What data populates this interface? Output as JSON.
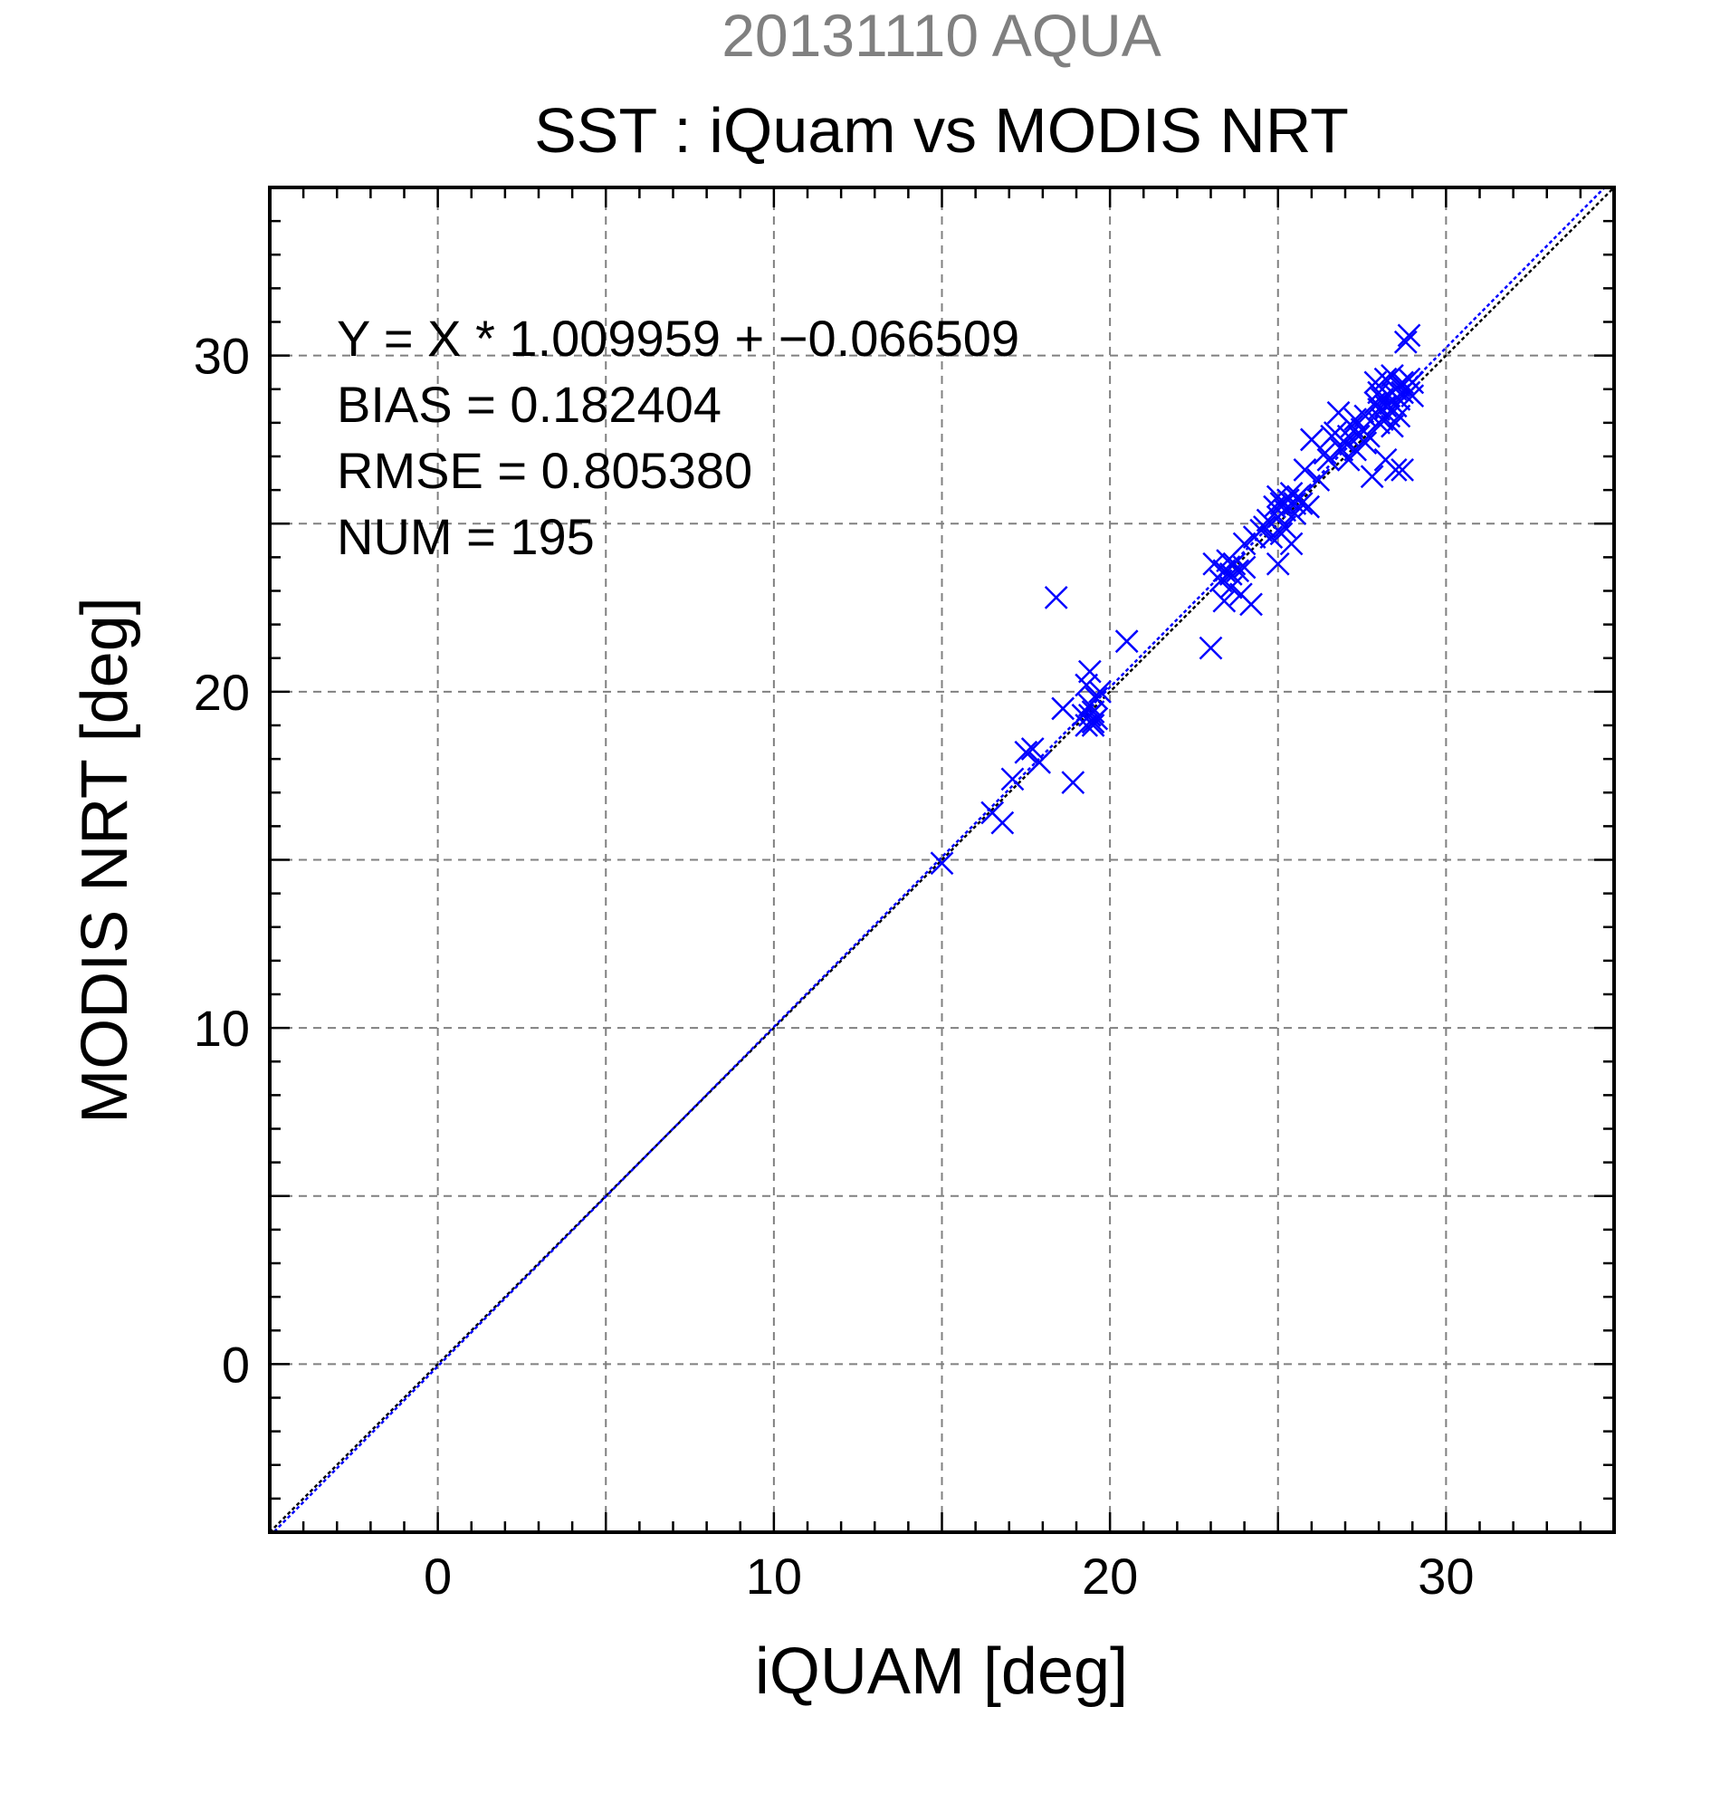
{
  "colors": {
    "marker": "#0000ff",
    "fit_line": "#0000ff",
    "identity_line": "#000000",
    "grid": "#808080",
    "subtitle": "#808080"
  },
  "chart_data": {
    "type": "scatter",
    "supertitle": "20131110 AQUA",
    "title": "SST : iQuam vs MODIS NRT",
    "xlabel": "iQUAM [deg]",
    "ylabel": "MODIS NRT [deg]",
    "xlim": [
      -5,
      35
    ],
    "ylim": [
      -5,
      35
    ],
    "xticks": [
      0,
      10,
      20,
      30
    ],
    "yticks": [
      0,
      10,
      20,
      30
    ],
    "grid": true,
    "marker": "x",
    "stats": {
      "equation": "Y = X * 1.009959 + −0.066509",
      "bias": "BIAS = 0.182404",
      "rmse": "RMSE = 0.805380",
      "num": "NUM = 195"
    },
    "fit": {
      "slope": 1.009959,
      "intercept": -0.066509
    },
    "identity": {
      "slope": 1,
      "intercept": 0
    },
    "points": [
      [
        15.0,
        14.9
      ],
      [
        16.5,
        16.4
      ],
      [
        16.8,
        16.1
      ],
      [
        17.1,
        17.4
      ],
      [
        17.5,
        18.2
      ],
      [
        17.7,
        18.3
      ],
      [
        17.9,
        17.9
      ],
      [
        18.4,
        22.8
      ],
      [
        18.6,
        19.5
      ],
      [
        18.9,
        17.3
      ],
      [
        19.2,
        19.3
      ],
      [
        19.3,
        20.2
      ],
      [
        19.3,
        19.0
      ],
      [
        19.4,
        20.6
      ],
      [
        19.4,
        19.6
      ],
      [
        19.5,
        19.1
      ],
      [
        19.5,
        19.4
      ],
      [
        19.6,
        19.2
      ],
      [
        19.6,
        19.8
      ],
      [
        19.7,
        20.0
      ],
      [
        19.5,
        19.0
      ],
      [
        19.4,
        19.3
      ],
      [
        20.5,
        21.5
      ],
      [
        23.0,
        21.3
      ],
      [
        23.1,
        23.8
      ],
      [
        23.3,
        23.3
      ],
      [
        23.4,
        22.7
      ],
      [
        23.4,
        23.6
      ],
      [
        23.5,
        23.9
      ],
      [
        23.6,
        23.5
      ],
      [
        23.6,
        23.1
      ],
      [
        23.7,
        23.8
      ],
      [
        23.8,
        23.6
      ],
      [
        23.9,
        22.9
      ],
      [
        24.0,
        23.7
      ],
      [
        24.0,
        24.4
      ],
      [
        24.2,
        22.6
      ],
      [
        24.3,
        24.6
      ],
      [
        24.5,
        24.8
      ],
      [
        24.6,
        24.9
      ],
      [
        24.7,
        25.1
      ],
      [
        24.8,
        24.6
      ],
      [
        24.9,
        25.5
      ],
      [
        25.0,
        23.8
      ],
      [
        25.0,
        25.2
      ],
      [
        25.0,
        25.8
      ],
      [
        25.1,
        24.7
      ],
      [
        25.1,
        25.6
      ],
      [
        25.2,
        25.4
      ],
      [
        25.2,
        24.9
      ],
      [
        25.3,
        25.7
      ],
      [
        25.4,
        25.9
      ],
      [
        25.4,
        24.4
      ],
      [
        25.5,
        25.3
      ],
      [
        25.5,
        25.6
      ],
      [
        25.6,
        25.8
      ],
      [
        25.7,
        25.6
      ],
      [
        25.8,
        26.6
      ],
      [
        25.9,
        25.5
      ],
      [
        26.0,
        27.5
      ],
      [
        26.2,
        26.3
      ],
      [
        26.4,
        27.1
      ],
      [
        26.5,
        26.9
      ],
      [
        26.6,
        27.6
      ],
      [
        26.7,
        27.7
      ],
      [
        26.8,
        28.3
      ],
      [
        26.9,
        27.2
      ],
      [
        27.0,
        27.4
      ],
      [
        27.1,
        26.9
      ],
      [
        27.1,
        27.6
      ],
      [
        27.2,
        27.9
      ],
      [
        27.3,
        28.1
      ],
      [
        27.3,
        27.2
      ],
      [
        27.4,
        27.6
      ],
      [
        27.5,
        27.8
      ],
      [
        27.6,
        27.4
      ],
      [
        27.6,
        28.2
      ],
      [
        27.7,
        27.6
      ],
      [
        27.8,
        26.4
      ],
      [
        27.9,
        28.6
      ],
      [
        27.9,
        29.2
      ],
      [
        28.0,
        28.4
      ],
      [
        28.0,
        28.9
      ],
      [
        28.1,
        28.1
      ],
      [
        28.1,
        28.7
      ],
      [
        28.2,
        26.9
      ],
      [
        28.2,
        28.5
      ],
      [
        28.2,
        29.3
      ],
      [
        28.3,
        28.8
      ],
      [
        28.3,
        28.2
      ],
      [
        28.4,
        28.9
      ],
      [
        28.4,
        27.9
      ],
      [
        28.5,
        29.0
      ],
      [
        28.5,
        28.5
      ],
      [
        28.5,
        26.6
      ],
      [
        28.6,
        29.1
      ],
      [
        28.6,
        28.7
      ],
      [
        28.6,
        28.2
      ],
      [
        28.7,
        29.2
      ],
      [
        28.7,
        28.9
      ],
      [
        28.7,
        26.6
      ],
      [
        28.8,
        30.4
      ],
      [
        28.8,
        29.0
      ],
      [
        28.9,
        29.3
      ],
      [
        28.9,
        30.6
      ],
      [
        28.9,
        28.9
      ],
      [
        29.0,
        29.2
      ],
      [
        29.0,
        28.8
      ],
      [
        28.4,
        29.4
      ],
      [
        28.0,
        28.0
      ]
    ]
  }
}
